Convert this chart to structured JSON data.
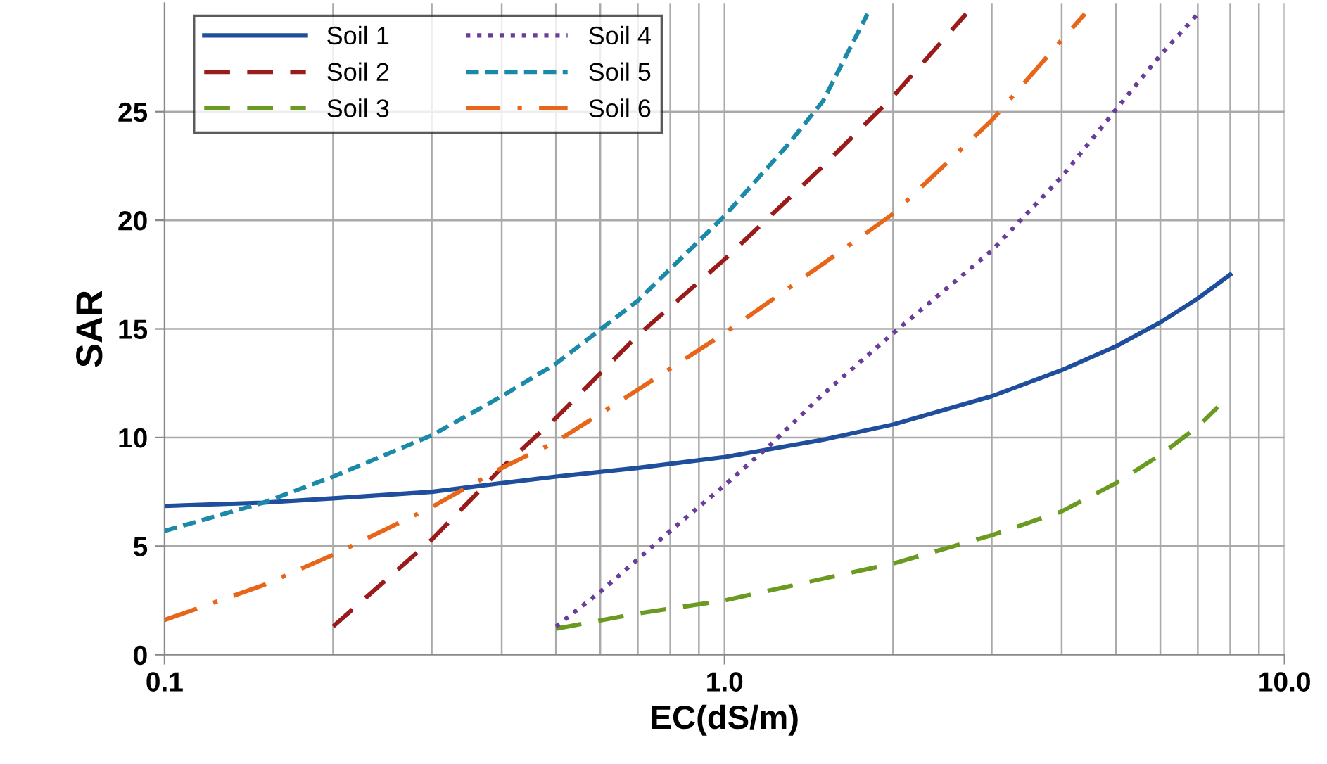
{
  "chart_data": {
    "type": "line",
    "xlabel": "EC(dS/m)",
    "ylabel": "SAR",
    "log": "x",
    "xlim": [
      0.1,
      10
    ],
    "xticks": [
      0.1,
      {
        "value": 1,
        "label": "1.0"
      },
      {
        "value": 10,
        "label": "10.0"
      }
    ],
    "ylim": [
      0,
      30
    ],
    "yticks": [
      0,
      5,
      10,
      15,
      20,
      25
    ],
    "grid": true,
    "legend": "top left",
    "series": [
      {
        "name": "Soil 1",
        "color": "#1f4e9c",
        "line_style": "solid",
        "x": [
          0.1,
          0.15,
          0.2,
          0.3,
          0.4,
          0.5,
          0.7,
          1.0,
          1.5,
          2,
          3,
          4,
          5,
          6,
          7,
          8
        ],
        "values": [
          6.85,
          7.0,
          7.2,
          7.5,
          7.9,
          8.2,
          8.6,
          9.1,
          9.9,
          10.6,
          11.9,
          13.1,
          14.2,
          15.3,
          16.4,
          17.5
        ]
      },
      {
        "name": "Soil 2",
        "color": "#9b1b1b",
        "line_style": "longdash",
        "x": [
          0.2,
          0.3,
          0.4,
          0.5,
          0.7,
          1.0,
          1.5,
          2.0,
          2.7
        ],
        "values": [
          1.3,
          5.3,
          8.6,
          10.9,
          14.7,
          18.2,
          22.5,
          25.7,
          29.5
        ]
      },
      {
        "name": "Soil 3",
        "color": "#6a9a1f",
        "line_style": "longdash",
        "x": [
          0.5,
          0.7,
          1.0,
          1.5,
          2.0,
          3.0,
          4.0,
          5.0,
          6.0,
          7.0,
          7.6
        ],
        "values": [
          1.2,
          1.9,
          2.5,
          3.5,
          4.2,
          5.5,
          6.6,
          7.9,
          9.2,
          10.5,
          11.4
        ]
      },
      {
        "name": "Soil 4",
        "color": "#6a3d9a",
        "line_style": "dotted",
        "x": [
          0.5,
          0.6,
          0.8,
          1.0,
          1.2,
          1.5,
          2.0,
          3.0,
          4.0,
          5.0,
          6.0,
          7.0
        ],
        "values": [
          1.3,
          2.9,
          5.7,
          7.8,
          9.6,
          12.0,
          14.8,
          18.6,
          22.0,
          25.1,
          27.6,
          29.5
        ]
      },
      {
        "name": "Soil 5",
        "color": "#1a8aa8",
        "line_style": "dashed",
        "x": [
          0.1,
          0.15,
          0.2,
          0.3,
          0.4,
          0.5,
          0.7,
          1.0,
          1.3,
          1.5,
          1.8
        ],
        "values": [
          5.7,
          7.0,
          8.2,
          10.1,
          11.9,
          13.4,
          16.3,
          20.2,
          23.5,
          25.5,
          29.5
        ]
      },
      {
        "name": "Soil 6",
        "color": "#e8661a",
        "line_style": "dashdot",
        "x": [
          0.1,
          0.15,
          0.2,
          0.3,
          0.4,
          0.5,
          0.7,
          1.0,
          1.5,
          2.0,
          3.0,
          4.0,
          4.4
        ],
        "values": [
          1.6,
          3.2,
          4.6,
          6.8,
          8.6,
          9.8,
          12.2,
          14.8,
          18.0,
          20.3,
          24.6,
          28.3,
          29.5
        ]
      }
    ]
  }
}
